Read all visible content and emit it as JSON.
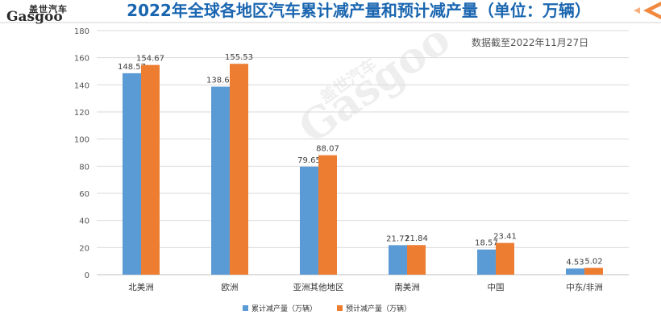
{
  "header": {
    "title": "2022年全球各地区汽车累计减产量和预计减产量（单位：万辆）",
    "logo_cn": "盖世汽车",
    "logo_en": "Gasgoo"
  },
  "note": "数据截至2022年11月27日",
  "colors": {
    "series1": "#5b9bd5",
    "series2": "#ed7d31",
    "title": "#1a66b0",
    "grid": "#d9d9d9",
    "accent": "#f0883e"
  },
  "chart_data": {
    "type": "bar",
    "title": "2022年全球各地区汽车累计减产量和预计减产量（单位：万辆）",
    "categories": [
      "北美洲",
      "欧洲",
      "亚洲其他地区",
      "南美洲",
      "中国",
      "中东/非洲"
    ],
    "series": [
      {
        "name": "累计减产量（万辆）",
        "values": [
          148.57,
          138.67,
          79.65,
          21.77,
          18.57,
          4.53
        ]
      },
      {
        "name": "预计减产量（万辆）",
        "values": [
          154.67,
          155.53,
          88.07,
          21.84,
          23.41,
          5.02
        ]
      }
    ],
    "ylim": [
      0,
      180
    ],
    "yticks": [
      "0",
      "20",
      "40",
      "60",
      "80",
      "100",
      "120",
      "140",
      "160",
      "180"
    ],
    "grid": true,
    "legend_position": "bottom"
  }
}
